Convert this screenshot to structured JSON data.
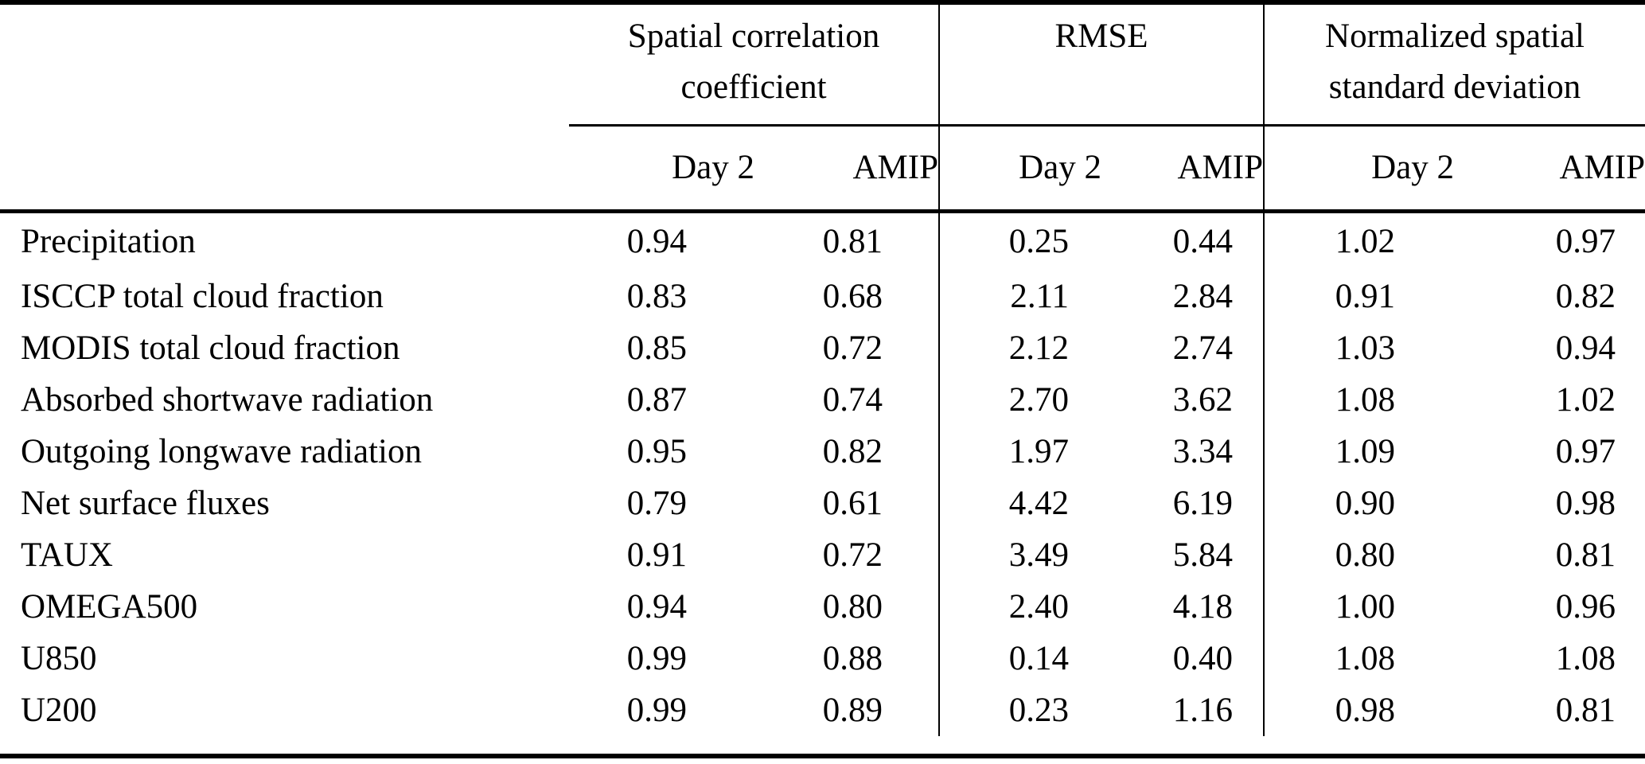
{
  "page": {
    "background_color": "#ffffff",
    "text_color": "#000000",
    "rule_color": "#000000"
  },
  "table": {
    "corner_label": "",
    "col_groups": [
      {
        "label": "Spatial correlation coefficient",
        "sub_columns": [
          "Day 2",
          "AMIP"
        ]
      },
      {
        "label": "RMSE",
        "sub_columns": [
          "Day 2",
          "AMIP"
        ]
      },
      {
        "label": "Normalized spatial standard deviation",
        "sub_columns": [
          "Day 2",
          "AMIP"
        ]
      }
    ],
    "rows": [
      {
        "label": "Precipitation",
        "values": [
          "0.94",
          "0.81",
          "0.25",
          "0.44",
          "1.02",
          "0.97"
        ]
      },
      {
        "label": "ISCCP total cloud fraction",
        "values": [
          "0.83",
          "0.68",
          "2.11",
          "2.84",
          "0.91",
          "0.82"
        ]
      },
      {
        "label": "MODIS total cloud fraction",
        "values": [
          "0.85",
          "0.72",
          "2.12",
          "2.74",
          "1.03",
          "0.94"
        ]
      },
      {
        "label": "Absorbed shortwave radiation",
        "values": [
          "0.87",
          "0.74",
          "2.70",
          "3.62",
          "1.08",
          "1.02"
        ]
      },
      {
        "label": "Outgoing longwave radiation",
        "values": [
          "0.95",
          "0.82",
          "1.97",
          "3.34",
          "1.09",
          "0.97"
        ]
      },
      {
        "label": "Net surface fluxes",
        "values": [
          "0.79",
          "0.61",
          "4.42",
          "6.19",
          "0.90",
          "0.98"
        ]
      },
      {
        "label": "TAUX",
        "values": [
          "0.91",
          "0.72",
          "3.49",
          "5.84",
          "0.80",
          "0.81"
        ]
      },
      {
        "label": "OMEGA500",
        "values": [
          "0.94",
          "0.80",
          "2.40",
          "4.18",
          "1.00",
          "0.96"
        ]
      },
      {
        "label": "U850",
        "values": [
          "0.99",
          "0.88",
          "0.14",
          "0.40",
          "1.08",
          "1.08"
        ]
      },
      {
        "label": "U200",
        "values": [
          "0.99",
          "0.89",
          "0.23",
          "1.16",
          "0.98",
          "0.81"
        ]
      }
    ]
  },
  "chart_data": {
    "type": "table",
    "title": "",
    "column_groups": [
      "Spatial correlation coefficient",
      "RMSE",
      "Normalized spatial standard deviation"
    ],
    "sub_columns_per_group": [
      "Day 2",
      "AMIP"
    ],
    "row_labels": [
      "Precipitation",
      "ISCCP total cloud fraction",
      "MODIS total cloud fraction",
      "Absorbed shortwave radiation",
      "Outgoing longwave radiation",
      "Net surface fluxes",
      "TAUX",
      "OMEGA500",
      "U850",
      "U200"
    ],
    "values": [
      [
        0.94,
        0.81,
        0.25,
        0.44,
        1.02,
        0.97
      ],
      [
        0.83,
        0.68,
        2.11,
        2.84,
        0.91,
        0.82
      ],
      [
        0.85,
        0.72,
        2.12,
        2.74,
        1.03,
        0.94
      ],
      [
        0.87,
        0.74,
        2.7,
        3.62,
        1.08,
        1.02
      ],
      [
        0.95,
        0.82,
        1.97,
        3.34,
        1.09,
        0.97
      ],
      [
        0.79,
        0.61,
        4.42,
        6.19,
        0.9,
        0.98
      ],
      [
        0.91,
        0.72,
        3.49,
        5.84,
        0.8,
        0.81
      ],
      [
        0.94,
        0.8,
        2.4,
        4.18,
        1.0,
        0.96
      ],
      [
        0.99,
        0.88,
        0.14,
        0.4,
        1.08,
        1.08
      ],
      [
        0.99,
        0.89,
        0.23,
        1.16,
        0.98,
        0.81
      ]
    ]
  }
}
